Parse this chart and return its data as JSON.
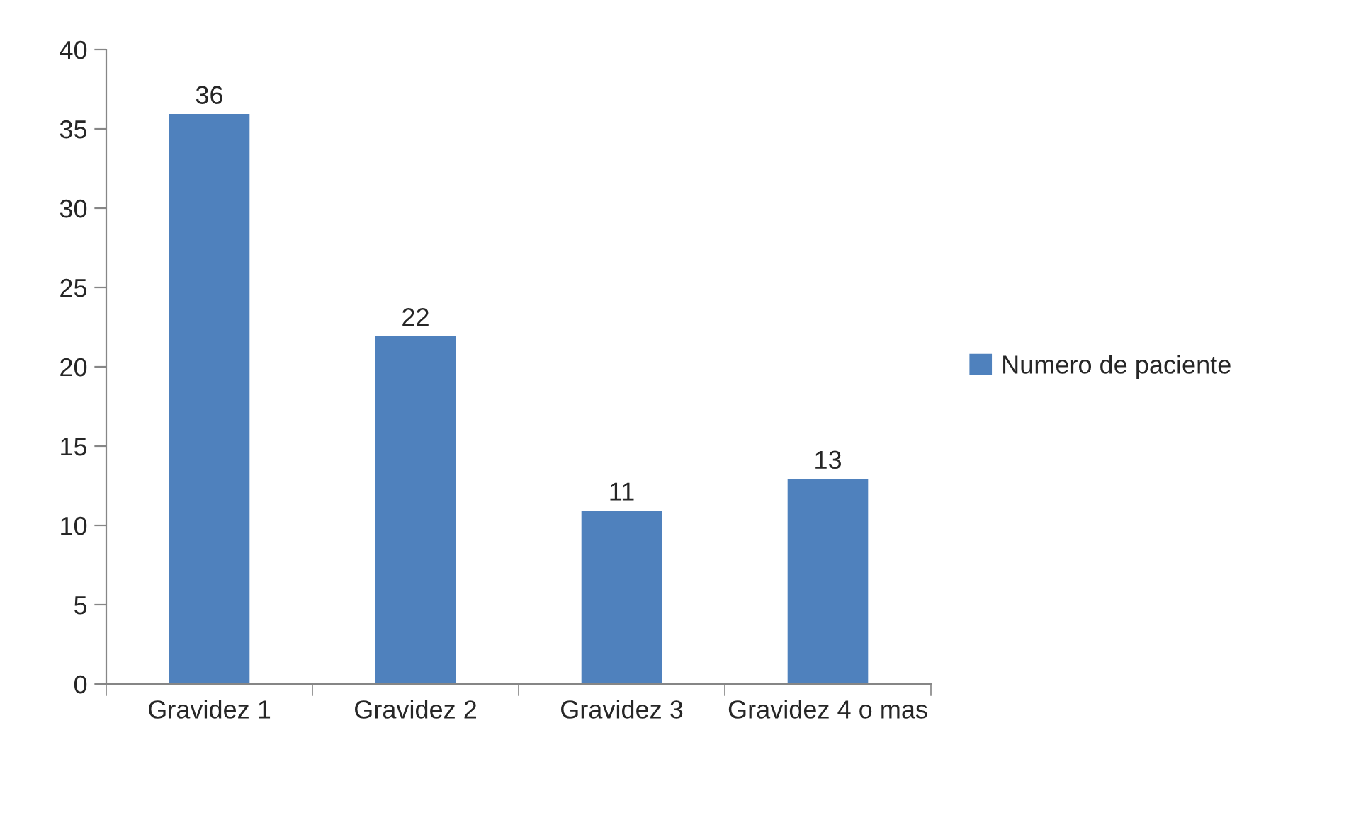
{
  "chart_data": {
    "type": "bar",
    "categories": [
      "Gravidez 1",
      "Gravidez 2",
      "Gravidez 3",
      "Gravidez 4 o mas"
    ],
    "series": [
      {
        "name": "Numero de paciente",
        "color": "#4f81bd",
        "values": [
          36,
          22,
          11,
          13
        ]
      }
    ],
    "ylim": [
      0,
      40
    ],
    "yticks": [
      0,
      5,
      10,
      15,
      20,
      25,
      30,
      35,
      40
    ],
    "data_labels": true,
    "legend": "right",
    "grid": false
  }
}
